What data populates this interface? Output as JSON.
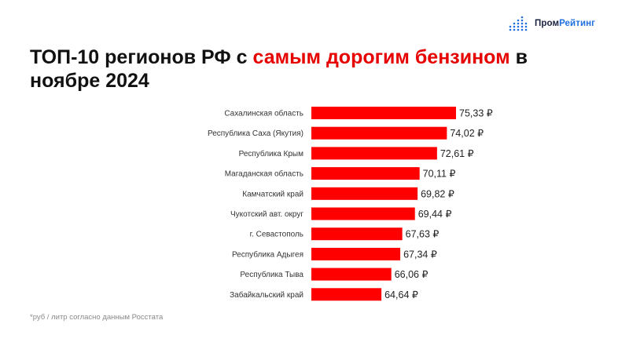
{
  "brand": {
    "part1": "Пром",
    "part2": "Рейтинг",
    "colors": {
      "dark": "#1a2340",
      "blue": "#1f6fe0"
    },
    "icon": "bar-dots-logo-icon"
  },
  "title": {
    "part1": "ТОП-10 регионов РФ с ",
    "highlight": "самым дорогим бензином",
    "part2": " в ноябре 2024",
    "highlight_color": "#e60000"
  },
  "footnote": "*руб / литр согласно данным Росстата",
  "chart_data": {
    "type": "bar",
    "orientation": "horizontal",
    "categories": [
      "Сахалинская область",
      "Республика Саха (Якутия)",
      "Республика Крым",
      "Магаданская область",
      "Камчатский край",
      "Чукотский авт. округ",
      "г. Севастополь",
      "Республика Адыгея",
      "Республика Тыва",
      "Забайкальский край"
    ],
    "values": [
      75.33,
      74.02,
      72.61,
      70.11,
      69.82,
      69.44,
      67.63,
      67.34,
      66.06,
      64.64
    ],
    "value_labels": [
      "75,33 ₽",
      "74,02 ₽",
      "72,61 ₽",
      "70,11 ₽",
      "69,82 ₽",
      "69,44 ₽",
      "67,63 ₽",
      "67,34 ₽",
      "66,06 ₽",
      "64,64 ₽"
    ],
    "bar_color": "#ff0000",
    "xlim": [
      54.6,
      75.33
    ],
    "grid": false,
    "legend": false
  }
}
